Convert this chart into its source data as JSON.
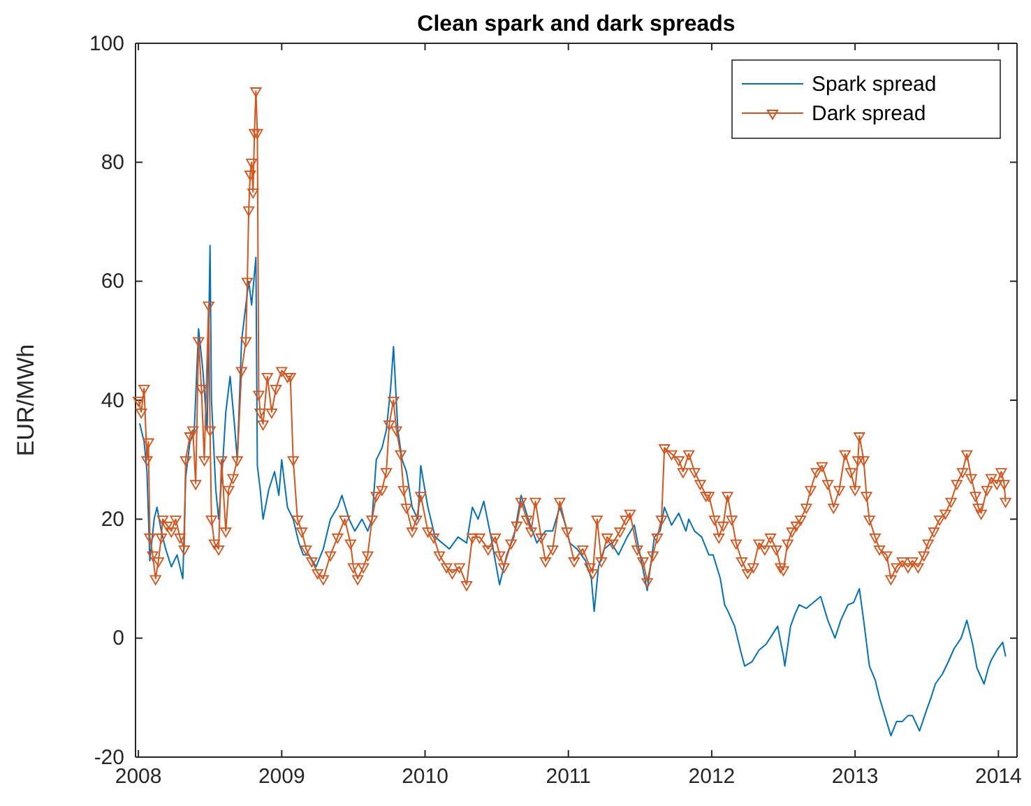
{
  "chart_data": {
    "type": "line",
    "title": "Clean spark and dark spreads",
    "ylabel": "EUR/MWh",
    "xlim": [
      2007.98,
      2014.13
    ],
    "xticks": [
      2008,
      2009,
      2010,
      2011,
      2012,
      2013,
      2014
    ],
    "ylim": [
      -20,
      100
    ],
    "yticks": [
      -20,
      0,
      20,
      40,
      60,
      80,
      100
    ],
    "legend": "top right",
    "grid": false,
    "series": [
      {
        "name": "Spark spread",
        "color": "#0072bd",
        "marker": "none",
        "x": [
          2008.01,
          2008.04,
          2008.06,
          2008.08,
          2008.11,
          2008.13,
          2008.16,
          2008.19,
          2008.23,
          2008.27,
          2008.31,
          2008.33,
          2008.36,
          2008.39,
          2008.42,
          2008.45,
          2008.48,
          2008.5,
          2008.51,
          2008.54,
          2008.56,
          2008.59,
          2008.61,
          2008.64,
          2008.67,
          2008.69,
          2008.72,
          2008.75,
          2008.77,
          2008.79,
          2008.82,
          2008.83,
          2008.85,
          2008.87,
          2008.91,
          2008.95,
          2008.98,
          2009.0,
          2009.04,
          2009.08,
          2009.12,
          2009.15,
          2009.19,
          2009.24,
          2009.29,
          2009.34,
          2009.39,
          2009.42,
          2009.47,
          2009.51,
          2009.56,
          2009.6,
          2009.63,
          2009.66,
          2009.7,
          2009.73,
          2009.76,
          2009.78,
          2009.81,
          2009.84,
          2009.87,
          2009.91,
          2009.95,
          2009.97,
          2010.02,
          2010.07,
          2010.17,
          2010.23,
          2010.29,
          2010.33,
          2010.37,
          2010.41,
          2010.46,
          2010.52,
          2010.57,
          2010.62,
          2010.67,
          2010.72,
          2010.78,
          2010.84,
          2010.89,
          2010.94,
          2010.98,
          2011.01,
          2011.06,
          2011.12,
          2011.16,
          2011.18,
          2011.21,
          2011.25,
          2011.3,
          2011.35,
          2011.41,
          2011.46,
          2011.5,
          2011.55,
          2011.6,
          2011.64,
          2011.67,
          2011.72,
          2011.77,
          2011.82,
          2011.84,
          2011.88,
          2011.93,
          2011.98,
          2012.01,
          2012.06,
          2012.09,
          2012.11,
          2012.16,
          2012.2,
          2012.23,
          2012.28,
          2012.33,
          2012.38,
          2012.42,
          2012.46,
          2012.5,
          2012.51,
          2012.55,
          2012.58,
          2012.61,
          2012.66,
          2012.71,
          2012.76,
          2012.81,
          2012.86,
          2012.9,
          2012.95,
          2012.99,
          2013.03,
          2013.06,
          2013.1,
          2013.14,
          2013.17,
          2013.22,
          2013.25,
          2013.29,
          2013.33,
          2013.37,
          2013.4,
          2013.45,
          2013.5,
          2013.53,
          2013.56,
          2013.61,
          2013.65,
          2013.69,
          2013.74,
          2013.78,
          2013.82,
          2013.85,
          2013.9,
          2013.93,
          2013.95,
          2013.99,
          2014.03,
          2014.05
        ],
        "values": [
          36,
          33,
          28,
          13,
          20,
          22,
          18,
          15,
          12,
          14,
          10,
          27,
          33,
          35,
          52,
          45,
          35,
          66,
          40,
          25,
          20,
          30,
          38,
          44,
          36,
          30,
          50,
          56,
          60,
          56,
          64,
          29,
          25,
          20,
          25,
          28,
          24,
          30,
          22,
          20,
          16,
          14,
          14,
          12,
          15,
          20,
          22,
          24,
          20,
          18,
          20,
          18,
          20,
          30,
          32,
          35,
          42,
          49,
          35,
          30,
          28,
          22,
          20,
          29,
          22,
          17,
          15,
          17,
          16,
          22,
          20,
          23,
          17,
          9,
          14,
          17,
          24,
          20,
          16,
          18,
          18,
          22,
          19,
          16,
          15,
          13,
          10,
          4.5,
          12,
          15,
          16,
          14,
          17,
          19,
          14,
          8,
          17,
          18,
          22,
          19,
          21,
          18,
          20,
          18,
          17,
          14,
          14,
          10,
          5.6,
          4.7,
          2,
          -2,
          -4.7,
          -4,
          -2,
          -1,
          0.5,
          2,
          -3,
          -4.7,
          2,
          4,
          5.6,
          5,
          6,
          7,
          3,
          0,
          3,
          5.6,
          6,
          8.3,
          3,
          -4.7,
          -7,
          -10,
          -14,
          -16.4,
          -14,
          -14,
          -13,
          -13,
          -15.6,
          -12,
          -10,
          -7.7,
          -6,
          -4,
          -1.8,
          0,
          3,
          -1,
          -5,
          -7.7,
          -5,
          -3.7,
          -2,
          -0.7,
          -3
        ]
      },
      {
        "name": "Dark spread",
        "color": "#d95319",
        "marker": "triangle",
        "x": [
          2008.0,
          2008.02,
          2008.04,
          2008.06,
          2008.07,
          2008.08,
          2008.1,
          2008.12,
          2008.14,
          2008.16,
          2008.17,
          2008.2,
          2008.23,
          2008.26,
          2008.29,
          2008.32,
          2008.33,
          2008.36,
          2008.38,
          2008.4,
          2008.42,
          2008.44,
          2008.46,
          2008.49,
          2008.5,
          2008.51,
          2008.53,
          2008.56,
          2008.58,
          2008.61,
          2008.63,
          2008.66,
          2008.69,
          2008.72,
          2008.75,
          2008.76,
          2008.77,
          2008.78,
          2008.79,
          2008.8,
          2008.81,
          2008.82,
          2008.83,
          2008.84,
          2008.85,
          2008.87,
          2008.9,
          2008.93,
          2008.96,
          2009.0,
          2009.04,
          2009.06,
          2009.08,
          2009.11,
          2009.14,
          2009.17,
          2009.21,
          2009.25,
          2009.29,
          2009.34,
          2009.39,
          2009.44,
          2009.48,
          2009.5,
          2009.53,
          2009.57,
          2009.6,
          2009.63,
          2009.66,
          2009.7,
          2009.73,
          2009.75,
          2009.78,
          2009.8,
          2009.83,
          2009.85,
          2009.87,
          2009.91,
          2009.94,
          2009.97,
          2010.02,
          2010.06,
          2010.1,
          2010.15,
          2010.19,
          2010.24,
          2010.29,
          2010.33,
          2010.38,
          2010.44,
          2010.49,
          2010.52,
          2010.55,
          2010.6,
          2010.64,
          2010.67,
          2010.71,
          2010.74,
          2010.77,
          2010.81,
          2010.84,
          2010.89,
          2010.94,
          2010.99,
          2011.04,
          2011.1,
          2011.15,
          2011.17,
          2011.2,
          2011.23,
          2011.27,
          2011.31,
          2011.36,
          2011.4,
          2011.43,
          2011.48,
          2011.52,
          2011.55,
          2011.59,
          2011.62,
          2011.65,
          2011.67,
          2011.72,
          2011.77,
          2011.8,
          2011.84,
          2011.88,
          2011.92,
          2011.96,
          2011.98,
          2012.02,
          2012.05,
          2012.08,
          2012.11,
          2012.14,
          2012.17,
          2012.21,
          2012.25,
          2012.29,
          2012.33,
          2012.37,
          2012.41,
          2012.45,
          2012.48,
          2012.5,
          2012.53,
          2012.56,
          2012.59,
          2012.62,
          2012.66,
          2012.69,
          2012.73,
          2012.77,
          2012.81,
          2012.85,
          2012.89,
          2012.93,
          2012.97,
          2013.0,
          2013.02,
          2013.03,
          2013.06,
          2013.08,
          2013.1,
          2013.14,
          2013.17,
          2013.22,
          2013.25,
          2013.29,
          2013.33,
          2013.37,
          2013.4,
          2013.44,
          2013.48,
          2013.51,
          2013.55,
          2013.59,
          2013.63,
          2013.67,
          2013.71,
          2013.75,
          2013.78,
          2013.81,
          2013.84,
          2013.86,
          2013.88,
          2013.92,
          2013.95,
          2013.99,
          2014.02,
          2014.04,
          2014.05
        ],
        "values": [
          40,
          38,
          42,
          30,
          33,
          17,
          14,
          10,
          13,
          17,
          20,
          19,
          18,
          20,
          17,
          15,
          30,
          34,
          35,
          26,
          50,
          42,
          30,
          56,
          35,
          20,
          16,
          15,
          30,
          18,
          25,
          27,
          30,
          45,
          50,
          60,
          72,
          78,
          80,
          75,
          85,
          92,
          85,
          41,
          38,
          36,
          44,
          38,
          42,
          45,
          44,
          44,
          30,
          20,
          18,
          15,
          13,
          11,
          10,
          14,
          17,
          20,
          16,
          12,
          10,
          12,
          14,
          20,
          24,
          25,
          28,
          36,
          40,
          35,
          31,
          25,
          22,
          18,
          20,
          24,
          18,
          17,
          14,
          12,
          11,
          12,
          9,
          17,
          17,
          15,
          17,
          14,
          12,
          16,
          19,
          23,
          20,
          18,
          23,
          17,
          13,
          15,
          23,
          18,
          13,
          15,
          12,
          11,
          20,
          13,
          17,
          16,
          18,
          20,
          21,
          15,
          13,
          9.5,
          14,
          17,
          20,
          32,
          31,
          30,
          28,
          31,
          28,
          26,
          24,
          24,
          20,
          17,
          19,
          24,
          20,
          16,
          13,
          11,
          12,
          16,
          15,
          17,
          15,
          12,
          11.5,
          16,
          18,
          19,
          20,
          22,
          25,
          28,
          29,
          26,
          22,
          25,
          31,
          28,
          25,
          30,
          34,
          30,
          24,
          20,
          17,
          15,
          14,
          10,
          12,
          13,
          12,
          13,
          12,
          14,
          16,
          18,
          20,
          21,
          23,
          26,
          28,
          31,
          27,
          24,
          22,
          21,
          25,
          27,
          26,
          28,
          26,
          23
        ]
      }
    ]
  }
}
